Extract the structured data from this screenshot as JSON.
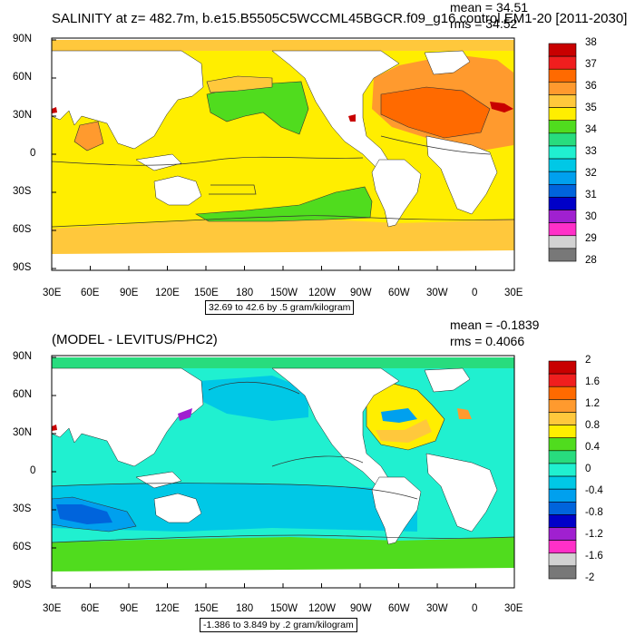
{
  "chart_data": [
    {
      "type": "heatmap",
      "title": "SALINITY at z= 482.7m, b.e15.B5505C5WCCML45BGCR.f09_g16.control.EM1-20 [2011-2030]",
      "stats": {
        "mean": "mean = 34.51",
        "rms": "rms = 34.52"
      },
      "info": "32.69 to 42.6 by .5 gram/kilogram",
      "x_ticks": [
        "30E",
        "60E",
        "90E",
        "120E",
        "150E",
        "180",
        "150W",
        "120W",
        "90W",
        "60W",
        "30W",
        "0",
        "30E"
      ],
      "y_ticks": [
        "90N",
        "60N",
        "30N",
        "0",
        "30S",
        "60S",
        "90S"
      ],
      "colorbar": {
        "labels": [
          "38",
          "37",
          "36",
          "35",
          "34",
          "33",
          "32",
          "31",
          "30",
          "29",
          "28"
        ],
        "colors": [
          "#c80000",
          "#f01e1e",
          "#ff6a00",
          "#ff9a2e",
          "#ffc83c",
          "#ffee00",
          "#50dc1e",
          "#28dc7e",
          "#20f0d0",
          "#00c8e6",
          "#00a0ee",
          "#0064dc",
          "#0000c8",
          "#a020d0",
          "#ff30c8",
          "#d2d2d2",
          "#787878"
        ]
      }
    },
    {
      "type": "heatmap",
      "title": "(MODEL - LEVITUS/PHC2)",
      "stats": {
        "mean": "mean = -0.1839",
        "rms": "rms = 0.4066"
      },
      "info": "-1.386 to 3.849 by .2 gram/kilogram",
      "x_ticks": [
        "30E",
        "60E",
        "90E",
        "120E",
        "150E",
        "180",
        "150W",
        "120W",
        "90W",
        "60W",
        "30W",
        "0",
        "30E"
      ],
      "y_ticks": [
        "90N",
        "60N",
        "30N",
        "0",
        "30S",
        "60S",
        "90S"
      ],
      "colorbar": {
        "labels": [
          "2",
          "1.6",
          "1.2",
          "0.8",
          "0.4",
          "0",
          "-0.4",
          "-0.8",
          "-1.2",
          "-1.6",
          "-2"
        ],
        "colors": [
          "#c80000",
          "#f01e1e",
          "#ff6a00",
          "#ff9a2e",
          "#ffc83c",
          "#ffee00",
          "#50dc1e",
          "#28dc7e",
          "#20f0d0",
          "#00c8e6",
          "#00a0ee",
          "#0064dc",
          "#0000c8",
          "#a020d0",
          "#ff30c8",
          "#d2d2d2",
          "#787878"
        ]
      }
    }
  ]
}
